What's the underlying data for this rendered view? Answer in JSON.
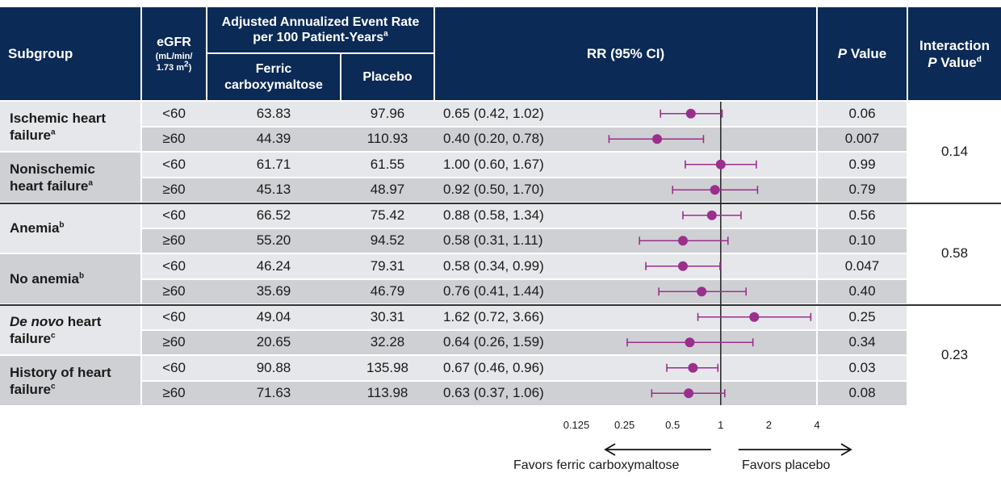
{
  "header": {
    "subgroup": "Subgroup",
    "egfr_title": "eGFR",
    "egfr_unit": "(mL/min/",
    "egfr_unit2": "1.73 m",
    "egfr_unit_sup": "2",
    "egfr_unit_close": ")",
    "rate_title": "Adjusted Annualized Event Rate per 100 Patient-Years",
    "rate_title_sup": "a",
    "ferric": "Ferric carboxymaltose",
    "placebo": "Placebo",
    "rr": "RR (95% CI)",
    "pvalue_italic": "P",
    "pvalue_rest": " Value",
    "interaction": "Interaction",
    "interaction_p_italic": "P",
    "interaction_p_rest": " Value",
    "interaction_sup": "d"
  },
  "groups": [
    {
      "label": "Ischemic heart failure",
      "sup": "a"
    },
    {
      "label": "Nonischemic heart failure",
      "sup": "a"
    },
    {
      "label": "Anemia",
      "sup": "b"
    },
    {
      "label": "No anemia",
      "sup": "b"
    },
    {
      "label_italic": "De novo",
      "label": " heart failure",
      "sup": "c"
    },
    {
      "label": "History of heart failure",
      "sup": "c"
    }
  ],
  "interaction_values": [
    "0.14",
    "0.58",
    "0.23"
  ],
  "rows": [
    {
      "egfr": "<60",
      "ferric": "63.83",
      "placebo": "97.96",
      "rr_text": "0.65 (0.42, 1.02)",
      "p": "0.06"
    },
    {
      "egfr": "≥60",
      "ferric": "44.39",
      "placebo": "110.93",
      "rr_text": "0.40 (0.20, 0.78)",
      "p": "0.007"
    },
    {
      "egfr": "<60",
      "ferric": "61.71",
      "placebo": "61.55",
      "rr_text": "1.00 (0.60, 1.67)",
      "p": "0.99"
    },
    {
      "egfr": "≥60",
      "ferric": "45.13",
      "placebo": "48.97",
      "rr_text": "0.92 (0.50, 1.70)",
      "p": "0.79"
    },
    {
      "egfr": "<60",
      "ferric": "66.52",
      "placebo": "75.42",
      "rr_text": "0.88 (0.58, 1.34)",
      "p": "0.56"
    },
    {
      "egfr": "≥60",
      "ferric": "55.20",
      "placebo": "94.52",
      "rr_text": "0.58 (0.31, 1.11)",
      "p": "0.10"
    },
    {
      "egfr": "<60",
      "ferric": "46.24",
      "placebo": "79.31",
      "rr_text": "0.58 (0.34, 0.99)",
      "p": "0.047"
    },
    {
      "egfr": "≥60",
      "ferric": "35.69",
      "placebo": "46.79",
      "rr_text": "0.76 (0.41, 1.44)",
      "p": "0.40"
    },
    {
      "egfr": "<60",
      "ferric": "49.04",
      "placebo": "30.31",
      "rr_text": "1.62 (0.72, 3.66)",
      "p": "0.25"
    },
    {
      "egfr": "≥60",
      "ferric": "20.65",
      "placebo": "32.28",
      "rr_text": "0.64 (0.26, 1.59)",
      "p": "0.34"
    },
    {
      "egfr": "<60",
      "ferric": "90.88",
      "placebo": "135.98",
      "rr_text": "0.67 (0.46, 0.96)",
      "p": "0.03"
    },
    {
      "egfr": "≥60",
      "ferric": "71.63",
      "placebo": "113.98",
      "rr_text": "0.63 (0.37, 1.06)",
      "p": "0.08"
    }
  ],
  "footer": {
    "favors_ferric": "Favors ferric carboxymaltose",
    "favors_placebo": "Favors placebo"
  },
  "colors": {
    "header_bg": "#0b2a56",
    "row_light": "#e6e7ea",
    "row_dark": "#cfd0d4",
    "marker": "#9b2f8c"
  },
  "chart_data": {
    "type": "forest",
    "title": "",
    "xlabel": "",
    "xscale": "log2",
    "xlim": [
      0.125,
      4
    ],
    "xticks": [
      0.125,
      0.25,
      0.5,
      1,
      2,
      4
    ],
    "xtick_labels": [
      "0.125",
      "0.25",
      "0.5",
      "1",
      "2",
      "4"
    ],
    "reference_line": 1,
    "rr": [
      0.65,
      0.4,
      1.0,
      0.92,
      0.88,
      0.58,
      0.58,
      0.76,
      1.62,
      0.64,
      0.67,
      0.63
    ],
    "ci_low": [
      0.42,
      0.2,
      0.6,
      0.5,
      0.58,
      0.31,
      0.34,
      0.41,
      0.72,
      0.26,
      0.46,
      0.37
    ],
    "ci_high": [
      1.02,
      0.78,
      1.67,
      1.7,
      1.34,
      1.11,
      0.99,
      1.44,
      3.66,
      1.59,
      0.96,
      1.06
    ]
  }
}
